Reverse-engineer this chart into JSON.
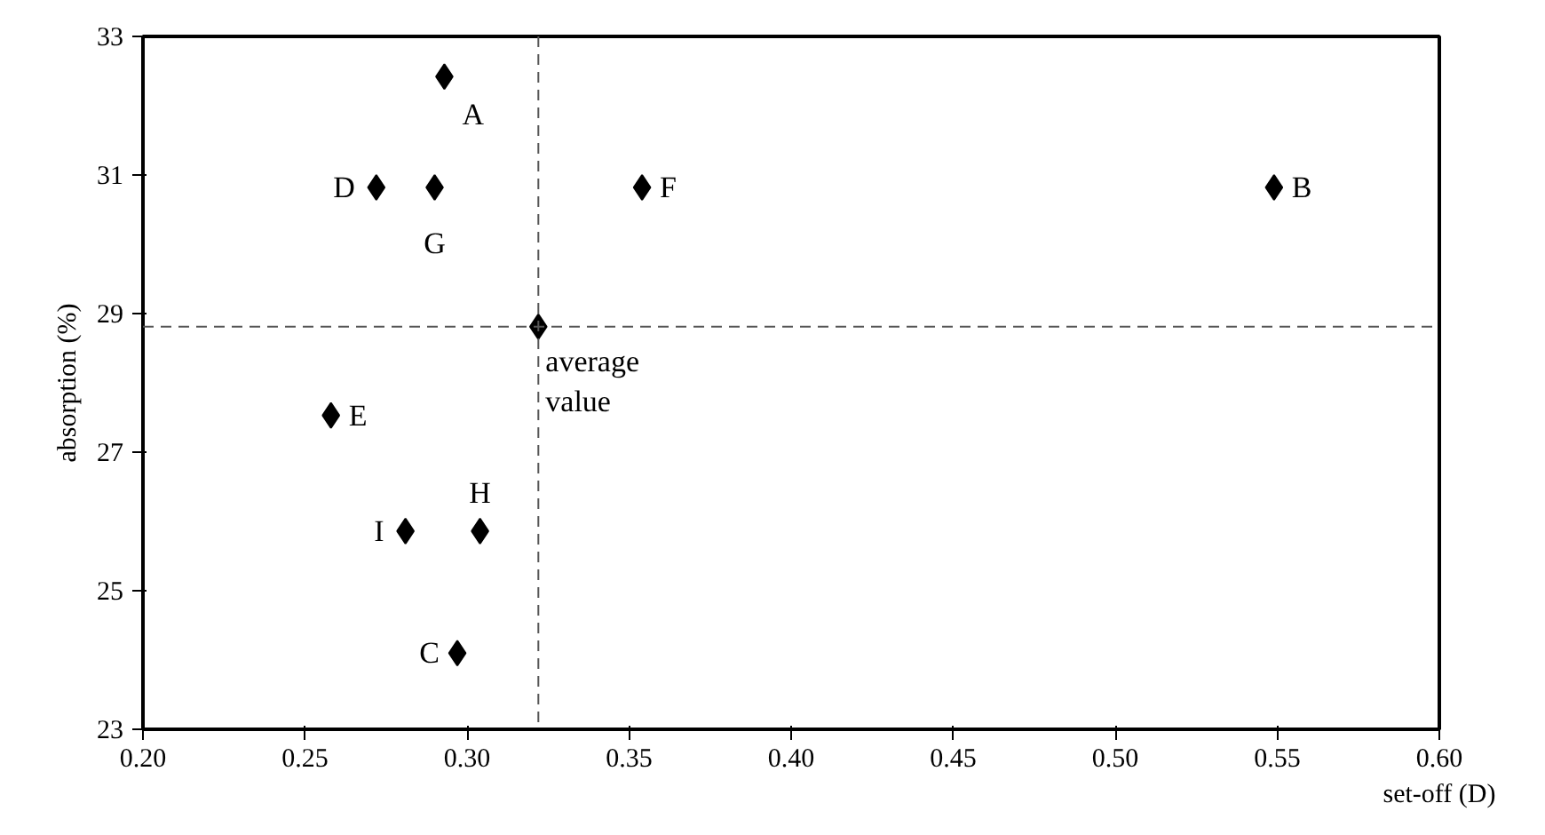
{
  "chart_data": {
    "type": "scatter",
    "xlabel": "set-off (D)",
    "ylabel": "absorption (%)",
    "x": [
      0.293,
      0.549,
      0.297,
      0.272,
      0.258,
      0.354,
      0.29,
      0.304,
      0.281,
      0.322
    ],
    "series": [
      {
        "color": "#000000",
        "values": [
          32.42,
          30.82,
          24.1,
          30.82,
          27.53,
          30.82,
          30.82,
          25.86,
          25.86,
          28.81
        ]
      }
    ],
    "xlim": [
      0.2,
      0.6
    ],
    "xticks": [
      {
        "value": 0.2,
        "label": "0.20"
      },
      {
        "value": 0.25,
        "label": "0.25"
      },
      {
        "value": 0.3,
        "label": "0.30"
      },
      {
        "value": 0.35,
        "label": "0.35"
      },
      {
        "value": 0.4,
        "label": "0.40"
      },
      {
        "value": 0.45,
        "label": "0.45"
      },
      {
        "value": 0.5,
        "label": "0.50"
      },
      {
        "value": 0.55,
        "label": "0.55"
      },
      {
        "value": 0.6,
        "label": "0.60"
      }
    ],
    "ylim": [
      23,
      33
    ],
    "yticks": [
      23,
      25,
      27,
      29,
      31,
      33
    ],
    "ref_lines": [
      {
        "axis": "x",
        "value": 0.322,
        "line_style": "dashed",
        "color": "#555555"
      },
      {
        "axis": "y",
        "value": 28.81,
        "line_style": "dashed",
        "color": "#555555"
      }
    ],
    "annotations": [
      {
        "text": "A",
        "x": 0.293,
        "y": 32.42
      },
      {
        "text": "B",
        "x": 0.549,
        "y": 30.82
      },
      {
        "text": "C",
        "x": 0.297,
        "y": 24.1
      },
      {
        "text": "D",
        "x": 0.272,
        "y": 30.82
      },
      {
        "text": "E",
        "x": 0.258,
        "y": 27.53
      },
      {
        "text": "F",
        "x": 0.354,
        "y": 30.82
      },
      {
        "text": "G",
        "x": 0.29,
        "y": 30.82
      },
      {
        "text": "H",
        "x": 0.304,
        "y": 25.86
      },
      {
        "text": "I",
        "x": 0.281,
        "y": 25.86
      },
      {
        "text": "average\nvalue",
        "x": 0.322,
        "y": 28.81
      }
    ],
    "marker": "diamond",
    "grid": false
  }
}
